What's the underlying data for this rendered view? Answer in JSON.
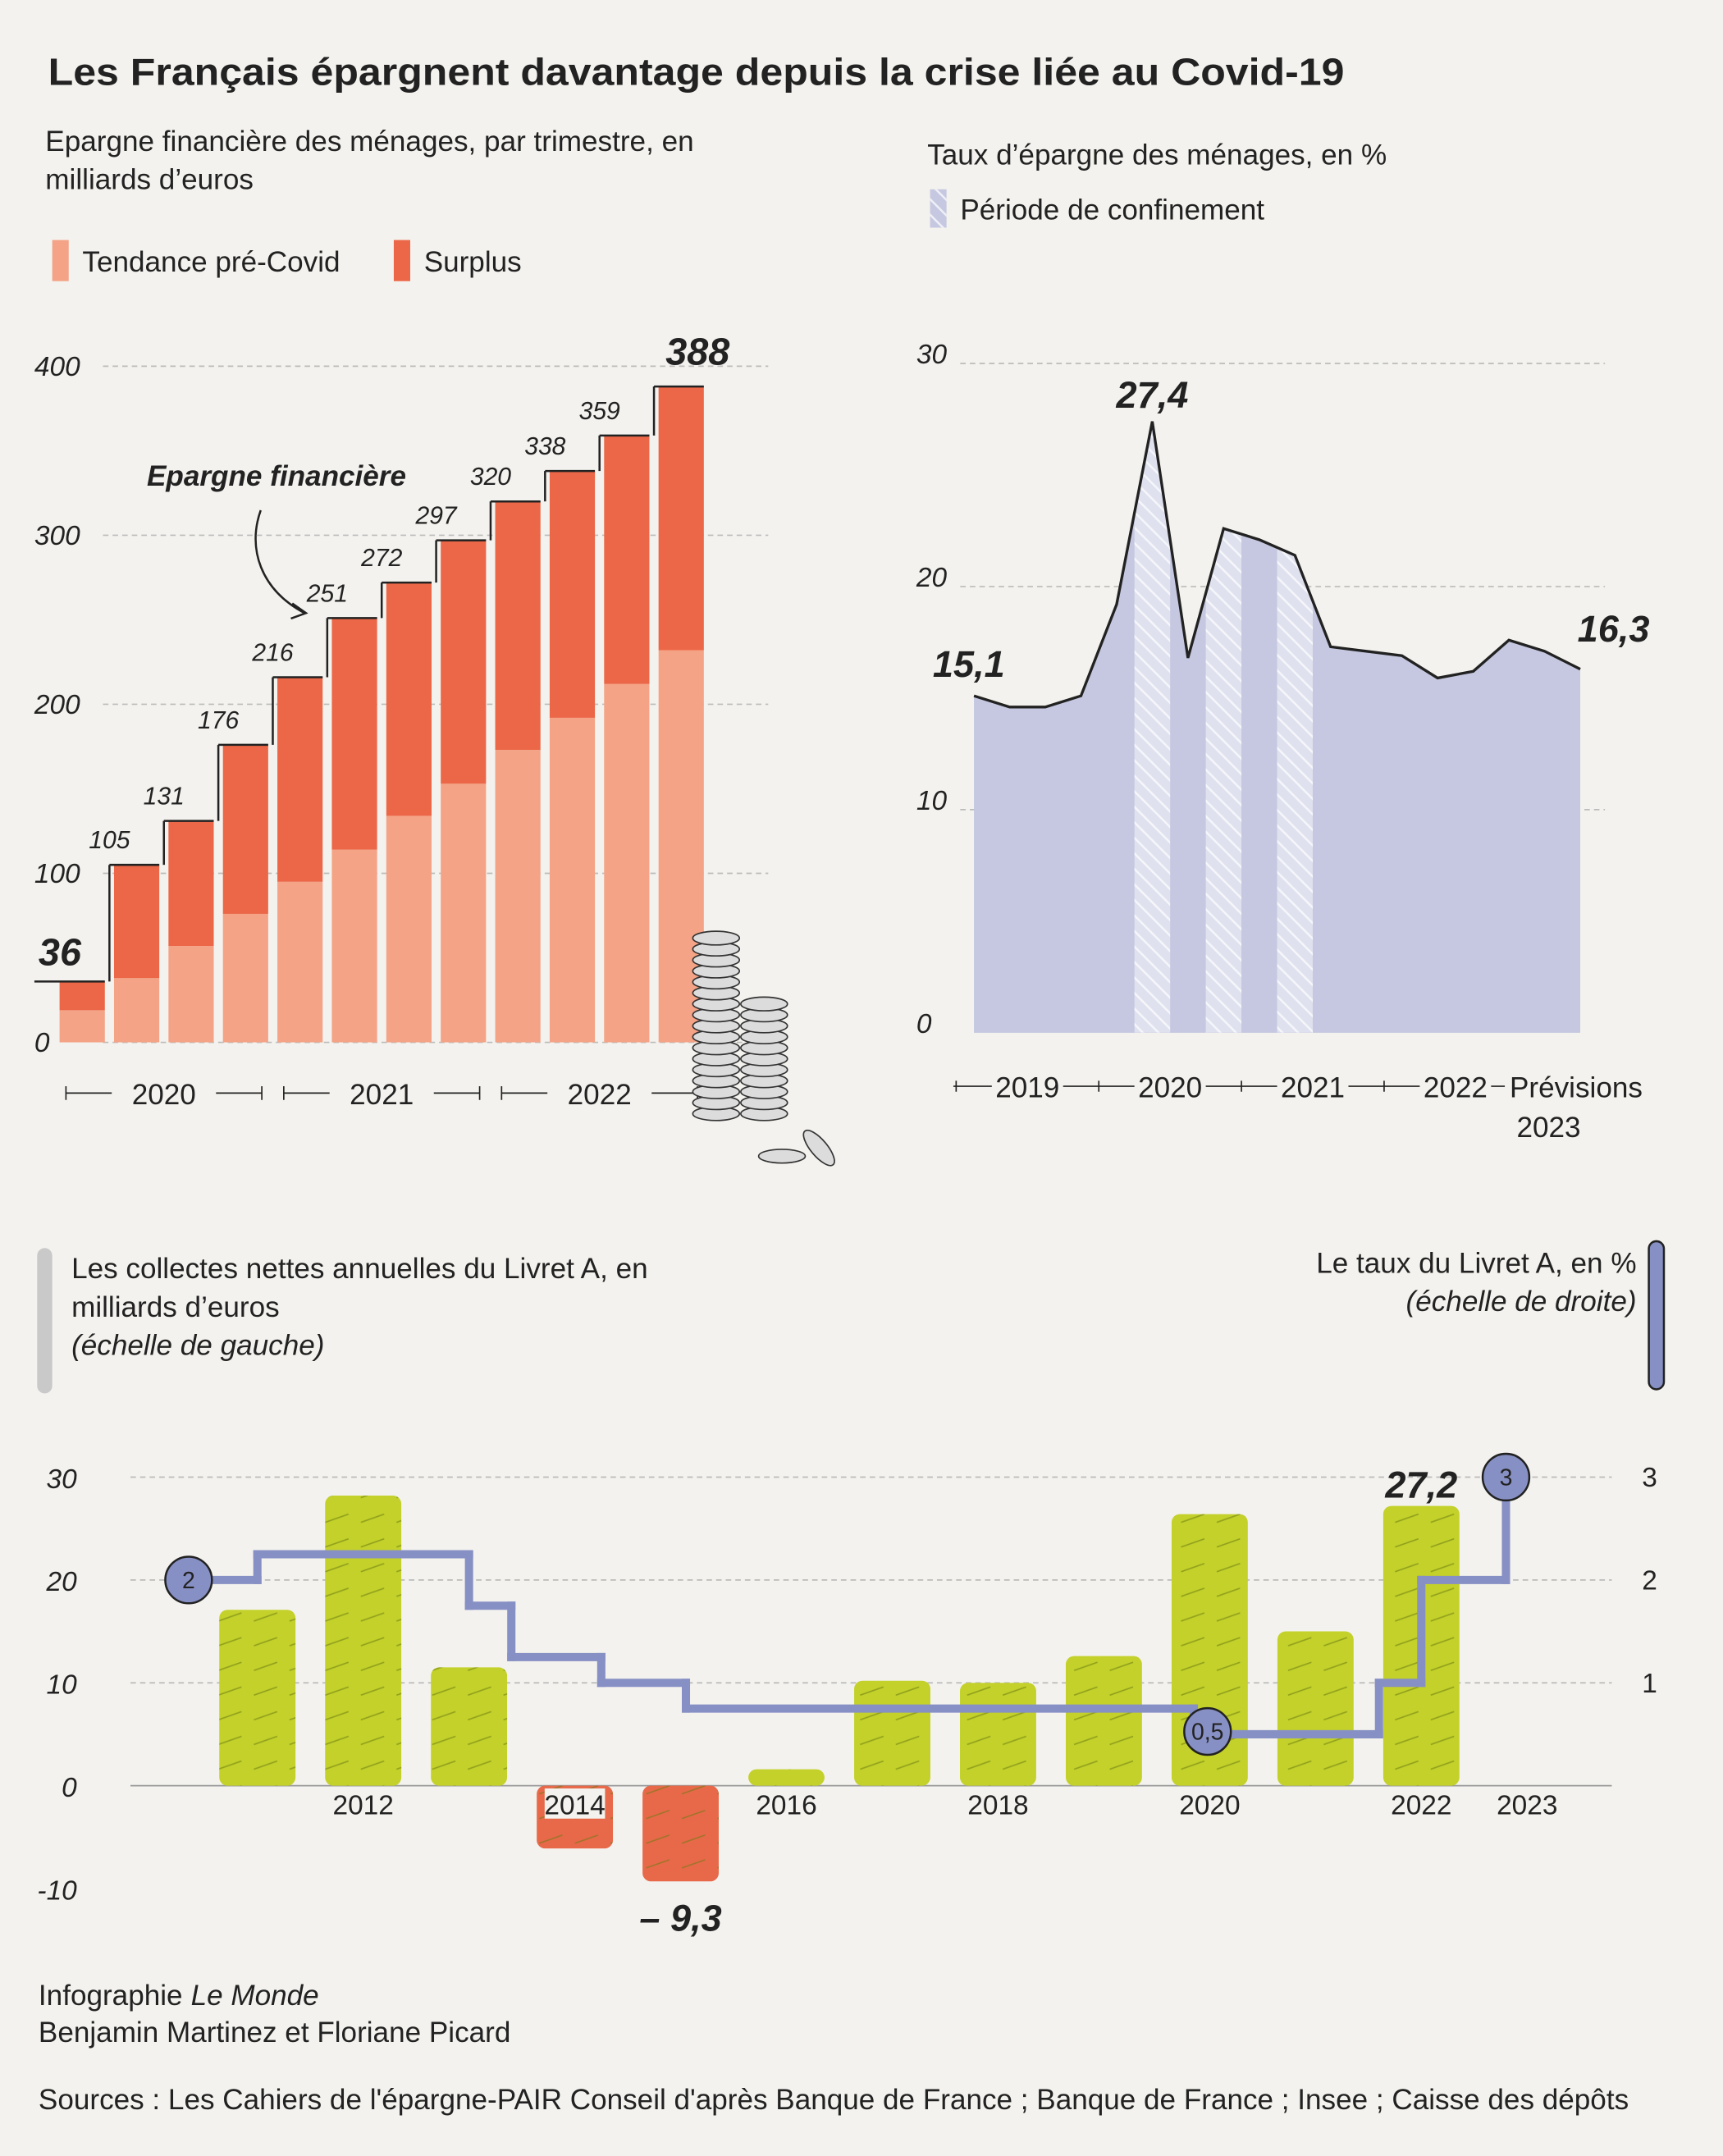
{
  "title": "Les Français épargnent davantage depuis la crise liée au Covid-19",
  "chart_data": [
    {
      "type": "stacked_bar",
      "title": "Epargne financière des ménages, par trimestre, en milliards d’euros",
      "categories": [
        null,
        null,
        null,
        null,
        null,
        null,
        null,
        null,
        null,
        null,
        null,
        null
      ],
      "x_groups": [
        "2020",
        "2021",
        "2022"
      ],
      "series": [
        {
          "name": "Tendance pré-Covid",
          "color": "#f4a386",
          "values": [
            19,
            38,
            57,
            76,
            95,
            114,
            134,
            153,
            173,
            192,
            212,
            232
          ]
        },
        {
          "name": "Surplus",
          "color": "#ec6747",
          "values": [
            17,
            67,
            74,
            100,
            121,
            137,
            138,
            144,
            147,
            146,
            147,
            156
          ]
        }
      ],
      "totals": [
        36,
        105,
        131,
        176,
        216,
        251,
        272,
        297,
        320,
        338,
        359,
        388
      ],
      "annotation": "Epargne financière",
      "ylim": [
        0,
        400
      ],
      "yticks": [
        0,
        100,
        200,
        300,
        400
      ],
      "grid": true
    },
    {
      "type": "area",
      "title": "Taux d’épargne des ménages, en %",
      "categories": [
        null,
        null,
        null,
        null,
        null,
        null,
        null,
        null,
        null,
        null,
        null,
        null,
        null,
        null,
        null,
        null,
        null,
        null
      ],
      "x_groups": [
        "2019",
        "2020",
        "2021",
        "2022",
        "2023"
      ],
      "forecast_label": "Prévisions",
      "color": "#c5c8e0",
      "values": [
        15.1,
        14.6,
        14.6,
        15.1,
        19.2,
        27.4,
        16.8,
        22.6,
        22.1,
        21.4,
        17.3,
        17.1,
        16.9,
        15.9,
        16.2,
        17.6,
        17.1,
        16.3
      ],
      "value_labels": [
        "15,1",
        null,
        null,
        null,
        null,
        "27,4",
        null,
        null,
        null,
        null,
        null,
        null,
        null,
        null,
        null,
        null,
        null,
        "16,3"
      ],
      "highlight": {
        "name": "Période de confinement",
        "indices": [
          5,
          7,
          9
        ],
        "color": "#dfe1ef"
      },
      "ylim": [
        0,
        30
      ],
      "yticks": [
        0,
        10,
        20,
        30
      ],
      "grid": true
    },
    {
      "type": "bar_line",
      "xlim": [
        2009.8,
        2023.8
      ],
      "xticks": [
        2012,
        2014,
        2016,
        2018,
        2020,
        2022,
        2023
      ],
      "series": [
        {
          "type": "bar",
          "name": "Les collectes nettes annuelles du Livret A, en milliards d’euros",
          "scale_note": "(échelle de gauche)",
          "color": "#c3d12a",
          "negative_color": "#e8694a",
          "legend_color": "#c9c9c9",
          "x": [
            2011,
            2012,
            2013,
            2014,
            2015,
            2016,
            2017,
            2018,
            2019,
            2020,
            2021,
            2022
          ],
          "values": [
            17.1,
            28.2,
            11.5,
            -6.1,
            -9.3,
            1.6,
            10.2,
            10.0,
            12.6,
            26.4,
            15.0,
            27.2
          ],
          "value_labels": [
            null,
            null,
            null,
            null,
            "– 9,3",
            null,
            null,
            null,
            null,
            null,
            null,
            "27,2"
          ]
        },
        {
          "type": "step",
          "name": "Le taux du Livret A, en %",
          "scale_note": "(échelle de droite)",
          "axis": "y2",
          "color": "#8790c4",
          "x": [
            2010.35,
            2011,
            2013,
            2013.4,
            2014.25,
            2015.05,
            2019.85,
            2021.6,
            2022,
            2022.8
          ],
          "values": [
            2,
            2.25,
            1.75,
            1.25,
            1,
            0.75,
            0.5,
            1,
            2,
            3
          ],
          "value_labels": [
            "2",
            null,
            null,
            null,
            null,
            null,
            "0,5",
            null,
            null,
            "3"
          ]
        }
      ],
      "ylim": [
        -12,
        30
      ],
      "yticks": [
        -10,
        0,
        10,
        20,
        30
      ],
      "y2lim": [
        -1.2,
        3
      ],
      "y2ticks": [
        1,
        2,
        3
      ],
      "grid": true
    }
  ],
  "credits": {
    "agency": "Infographie",
    "outlet": "Le Monde",
    "authors": "Benjamin Martinez et Floriane Picard",
    "sources": "Sources : Les Cahiers de l'épargne-PAIR Conseil d'après Banque de France ; Banque de France ; Insee ; Caisse des dépôts"
  }
}
